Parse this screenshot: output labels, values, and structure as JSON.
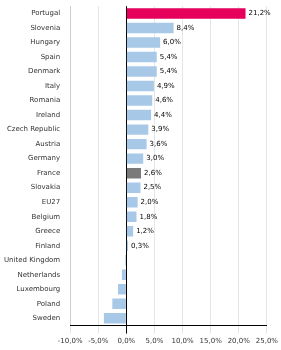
{
  "chart_data": {
    "type": "bar",
    "orientation": "horizontal",
    "categories": [
      "Portugal",
      "Slovenia",
      "Hungary",
      "Spain",
      "Denmark",
      "Italy",
      "Romania",
      "Ireland",
      "Czech Republic",
      "Austria",
      "Germany",
      "France",
      "Slovakia",
      "EU27",
      "Belgium",
      "Greece",
      "Finland",
      "United Kingdom",
      "Netherlands",
      "Luxembourg",
      "Poland",
      "Sweden"
    ],
    "values": [
      21.2,
      8.4,
      6.0,
      5.4,
      5.4,
      4.9,
      4.6,
      4.4,
      3.9,
      3.6,
      3.0,
      2.6,
      2.5,
      2.0,
      1.8,
      1.2,
      0.3,
      -0.2,
      -0.8,
      -1.5,
      -2.5,
      -4.0
    ],
    "value_labels": [
      "21,2%",
      "8,4%",
      "6,0%",
      "5,4%",
      "5,4%",
      "4,9%",
      "4,6%",
      "4,4%",
      "3,9%",
      "3,6%",
      "3,0%",
      "2,6%",
      "2,5%",
      "2,0%",
      "1,8%",
      "1,2%",
      "0,3%",
      null,
      null,
      null,
      null,
      null
    ],
    "data_labels": true,
    "colors": [
      "#e6005c",
      "#a8c8e8",
      "#a8c8e8",
      "#a8c8e8",
      "#a8c8e8",
      "#a8c8e8",
      "#a8c8e8",
      "#a8c8e8",
      "#a8c8e8",
      "#a8c8e8",
      "#a8c8e8",
      "#7a7a7a",
      "#a8c8e8",
      "#a8c8e8",
      "#a8c8e8",
      "#a8c8e8",
      "#a8c8e8",
      "#a8c8e8",
      "#a8c8e8",
      "#a8c8e8",
      "#a8c8e8",
      "#a8c8e8"
    ],
    "xlim": [
      -10,
      25
    ],
    "xticks": [
      {
        "value": -10,
        "label": "-10,0%"
      },
      {
        "value": -5,
        "label": "-5,0%"
      },
      {
        "value": 0,
        "label": "0,0%"
      },
      {
        "value": 5,
        "label": "5,0%"
      },
      {
        "value": 10,
        "label": "10,0%"
      },
      {
        "value": 15,
        "label": "15,0%"
      },
      {
        "value": 20,
        "label": "20,0%"
      },
      {
        "value": 25,
        "label": "25,0%"
      }
    ],
    "grid": true
  }
}
